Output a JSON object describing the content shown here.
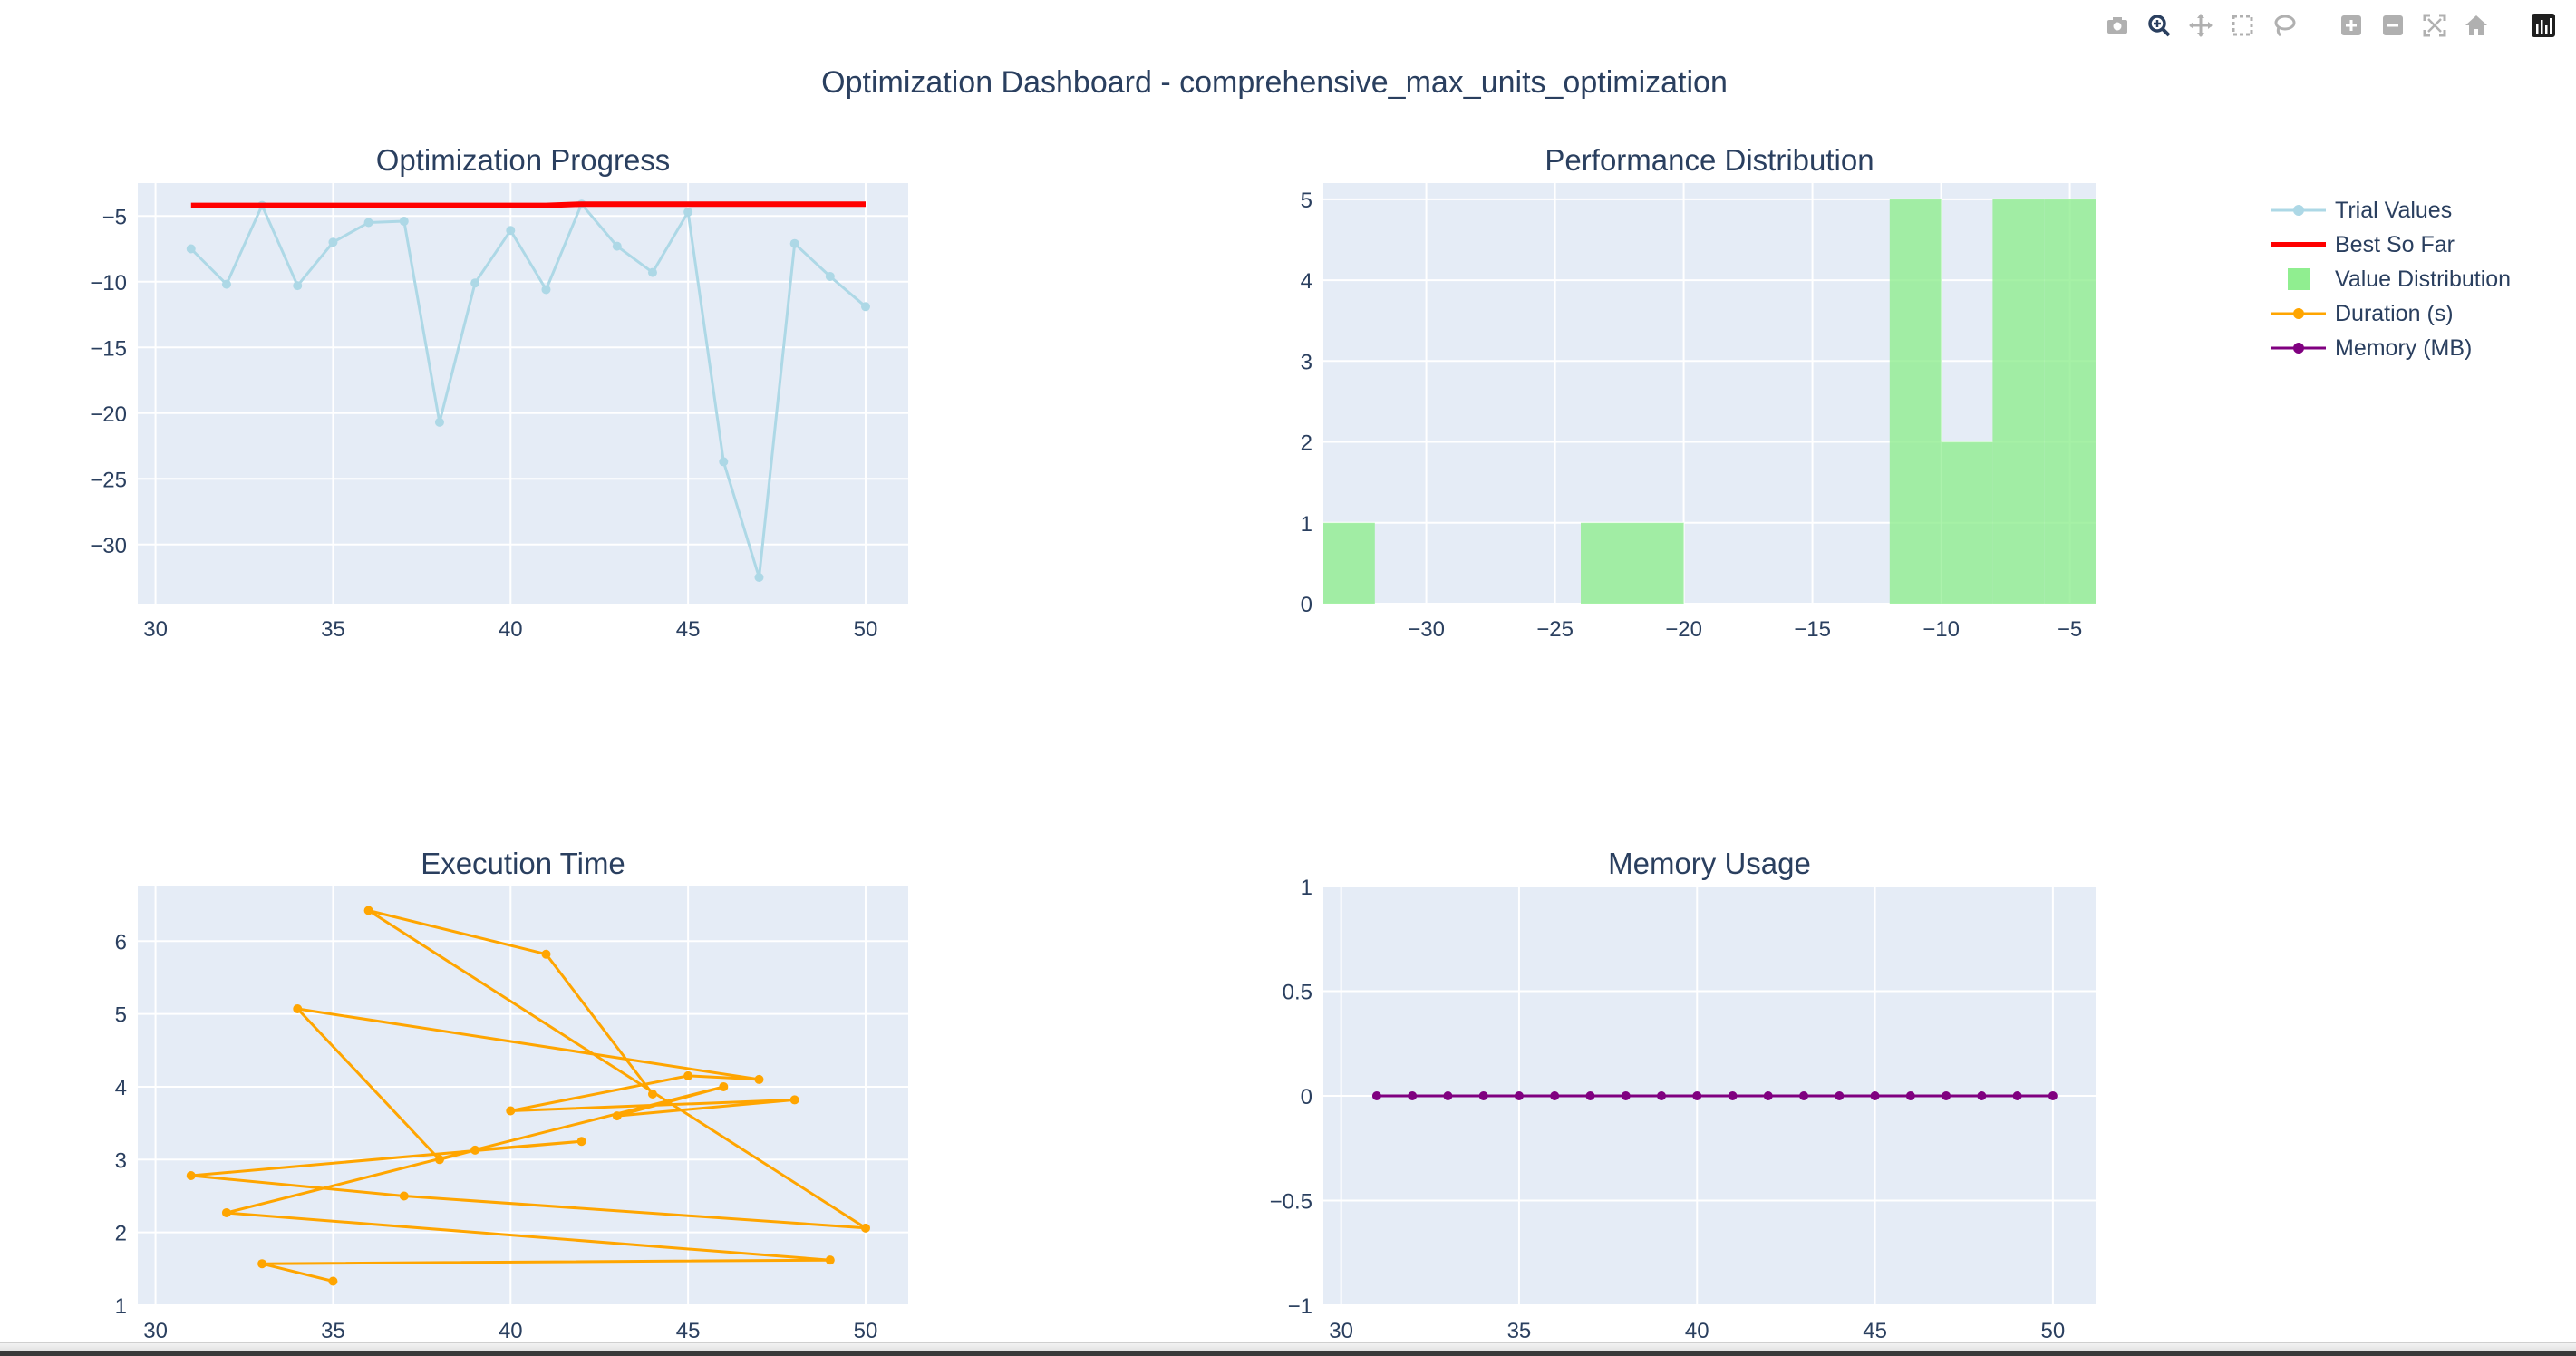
{
  "title": "Optimization Dashboard - comprehensive_max_units_optimization",
  "modebar": [
    {
      "icon": "camera-icon",
      "active": false
    },
    {
      "icon": "zoom-icon",
      "active": true
    },
    {
      "icon": "pan-icon",
      "active": false
    },
    {
      "icon": "box-select-icon",
      "active": false
    },
    {
      "icon": "lasso-select-icon",
      "active": false
    },
    {
      "icon": "zoom-in-icon",
      "active": false
    },
    {
      "icon": "zoom-out-icon",
      "active": false
    },
    {
      "icon": "autoscale-icon",
      "active": false
    },
    {
      "icon": "reset-axes-icon",
      "active": false
    },
    {
      "icon": "plotly-logo-icon",
      "active": false
    }
  ],
  "colors": {
    "plot_bg": "#e5ecf6",
    "grid": "#ffffff",
    "text": "#2a3f5f",
    "trial": "#add8e6",
    "best": "#ff0000",
    "hist": "#90ee90",
    "duration": "#ffa500",
    "memory": "#800080"
  },
  "legend": {
    "placement": "top-right",
    "items": [
      {
        "label": "Trial Values",
        "symbol": "line-marker",
        "color": "#add8e6"
      },
      {
        "label": "Best So Far",
        "symbol": "line",
        "color": "#ff0000"
      },
      {
        "label": "Value Distribution",
        "symbol": "box",
        "color": "#90ee90"
      },
      {
        "label": "Duration (s)",
        "symbol": "line-marker",
        "color": "#ffa500"
      },
      {
        "label": "Memory (MB)",
        "symbol": "line-marker",
        "color": "#800080"
      }
    ]
  },
  "chart_data": [
    {
      "type": "line",
      "title": "Optimization Progress",
      "xlim": [
        29.5,
        51.2
      ],
      "ylim": [
        -34.5,
        -2.5
      ],
      "xticks": [
        30,
        35,
        40,
        45,
        50
      ],
      "yticks": [
        -5,
        -10,
        -15,
        -20,
        -25,
        -30
      ],
      "series": [
        {
          "name": "Trial Values",
          "color": "#add8e6",
          "markers": true,
          "x": [
            31,
            32,
            33,
            34,
            35,
            36,
            37,
            38,
            39,
            40,
            41,
            42,
            43,
            44,
            45,
            46,
            47,
            48,
            49,
            50
          ],
          "y": [
            -7.5,
            -10.2,
            -4.2,
            -10.3,
            -7.0,
            -5.5,
            -5.4,
            -20.7,
            -10.1,
            -6.1,
            -10.6,
            -4.1,
            -7.3,
            -9.3,
            -4.7,
            -23.7,
            -32.5,
            -7.1,
            -9.6,
            -11.9
          ]
        },
        {
          "name": "Best So Far",
          "color": "#ff0000",
          "markers": false,
          "x": [
            31,
            32,
            33,
            34,
            35,
            36,
            37,
            38,
            39,
            40,
            41,
            42,
            43,
            44,
            45,
            46,
            47,
            48,
            49,
            50
          ],
          "y": [
            -4.2,
            -4.2,
            -4.2,
            -4.2,
            -4.2,
            -4.2,
            -4.2,
            -4.2,
            -4.2,
            -4.2,
            -4.2,
            -4.1,
            -4.1,
            -4.1,
            -4.1,
            -4.1,
            -4.1,
            -4.1,
            -4.1,
            -4.1
          ]
        }
      ]
    },
    {
      "type": "bar",
      "title": "Performance Distribution",
      "xlim": [
        -34,
        -4
      ],
      "ylim": [
        0,
        5.2
      ],
      "xticks": [
        -30,
        -25,
        -20,
        -15,
        -10,
        -5
      ],
      "yticks": [
        0,
        1,
        2,
        3,
        4,
        5
      ],
      "bins": [
        {
          "start": -34,
          "end": -32,
          "count": 1
        },
        {
          "start": -24,
          "end": -22,
          "count": 1
        },
        {
          "start": -22,
          "end": -20,
          "count": 1
        },
        {
          "start": -12,
          "end": -10,
          "count": 5
        },
        {
          "start": -10,
          "end": -8,
          "count": 2
        },
        {
          "start": -8,
          "end": -6,
          "count": 5
        },
        {
          "start": -6,
          "end": -4,
          "count": 5
        }
      ],
      "series": [
        {
          "name": "Value Distribution",
          "color": "#90ee90"
        }
      ]
    },
    {
      "type": "line",
      "title": "Execution Time",
      "xlim": [
        29.5,
        51.2
      ],
      "ylim": [
        1,
        6.75
      ],
      "xticks": [
        30,
        35,
        40,
        45,
        50
      ],
      "yticks": [
        1,
        2,
        3,
        4,
        5,
        6
      ],
      "series": [
        {
          "name": "Duration (s)",
          "color": "#ffa500",
          "markers": true,
          "x": [
            35,
            33,
            49,
            32,
            46,
            43,
            48,
            40,
            45,
            47,
            34,
            38,
            39,
            42,
            31,
            37,
            50,
            36,
            41,
            44
          ],
          "y": [
            1.33,
            1.57,
            1.62,
            2.27,
            4.0,
            3.6,
            3.82,
            3.67,
            4.15,
            4.1,
            5.07,
            3.0,
            3.13,
            3.25,
            2.78,
            2.5,
            2.06,
            6.42,
            5.82,
            3.9
          ]
        }
      ]
    },
    {
      "type": "line",
      "title": "Memory Usage",
      "xlim": [
        29.5,
        51.2
      ],
      "ylim": [
        -1,
        1
      ],
      "xticks": [
        30,
        35,
        40,
        45,
        50
      ],
      "yticks": [
        1,
        0.5,
        0,
        -0.5,
        -1
      ],
      "series": [
        {
          "name": "Memory (MB)",
          "color": "#800080",
          "markers": true,
          "x": [
            31,
            32,
            33,
            34,
            35,
            36,
            37,
            38,
            39,
            40,
            41,
            42,
            43,
            44,
            45,
            46,
            47,
            48,
            49,
            50
          ],
          "y": [
            0,
            0,
            0,
            0,
            0,
            0,
            0,
            0,
            0,
            0,
            0,
            0,
            0,
            0,
            0,
            0,
            0,
            0,
            0,
            0
          ]
        }
      ]
    }
  ]
}
